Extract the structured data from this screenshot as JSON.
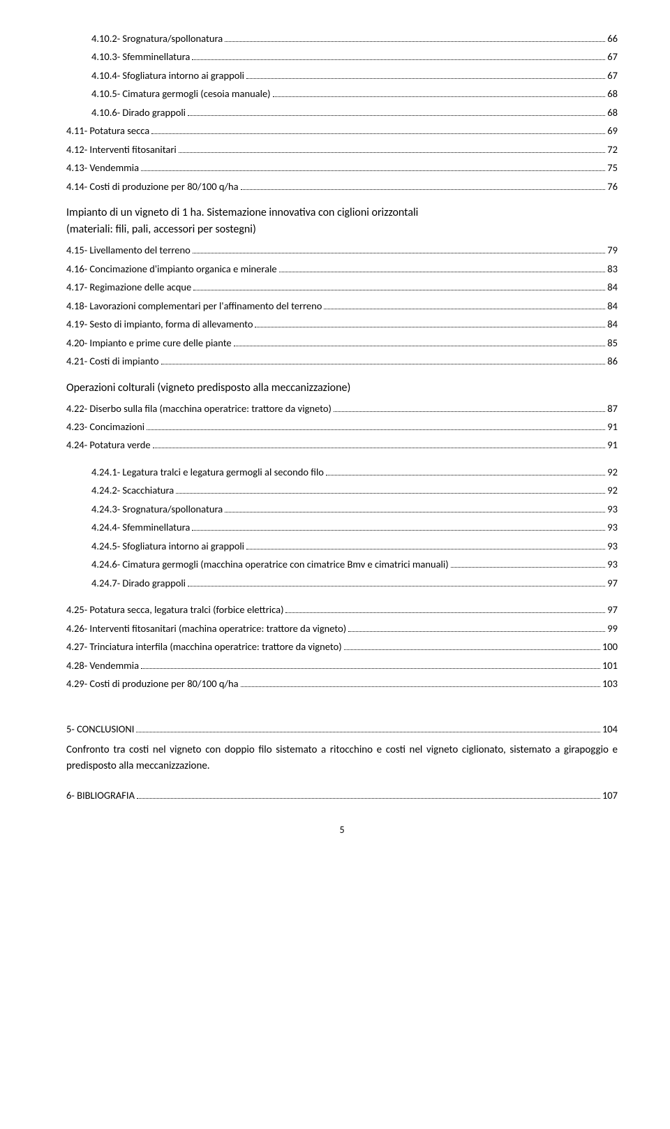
{
  "toc_block1": [
    {
      "indent": 2,
      "label": "4.10.2- Srognatura/spollonatura",
      "page": "66"
    },
    {
      "indent": 2,
      "label": "4.10.3- Sfemminellatura",
      "page": "67"
    },
    {
      "indent": 2,
      "label": "4.10.4- Sfogliatura intorno ai grappoli",
      "page": "67"
    },
    {
      "indent": 2,
      "label": "4.10.5- Cimatura germogli (cesoia manuale)",
      "page": "68"
    },
    {
      "indent": 2,
      "label": "4.10.6- Dirado grappoli",
      "page": "68"
    }
  ],
  "toc_block2": [
    {
      "indent": 1,
      "label": "4.11- Potatura secca",
      "page": "69"
    },
    {
      "indent": 1,
      "label": "4.12- Interventi fitosanitari",
      "page": "72"
    },
    {
      "indent": 1,
      "label": "4.13- Vendemmia",
      "page": "75"
    },
    {
      "indent": 1,
      "label": "4.14- Costi di produzione per 80/100 q/ha",
      "page": "76"
    }
  ],
  "heading1_line1": "Impianto di un vigneto di 1 ha. Sistemazione innovativa con ciglioni orizzontali",
  "heading1_line2": "(materiali: fili, pali, accessori per sostegni)",
  "toc_block3": [
    {
      "indent": 1,
      "label": "4.15- Livellamento del terreno",
      "page": "79"
    },
    {
      "indent": 1,
      "label": "4.16- Concimazione d'impianto organica e minerale",
      "page": "83"
    },
    {
      "indent": 1,
      "label": "4.17- Regimazione delle acque",
      "page": "84"
    },
    {
      "indent": 1,
      "label": "4.18- Lavorazioni complementari per l'affinamento del terreno",
      "page": "84"
    },
    {
      "indent": 1,
      "label": "4.19- Sesto di impianto, forma di allevamento",
      "page": "84"
    },
    {
      "indent": 1,
      "label": "4.20- Impianto e prime cure delle piante",
      "page": "85"
    },
    {
      "indent": 1,
      "label": "4.21- Costi di impianto",
      "page": "86"
    }
  ],
  "heading2": "Operazioni colturali (vigneto predisposto alla meccanizzazione)",
  "toc_block4": [
    {
      "indent": 1,
      "label": "4.22- Diserbo sulla fila (macchina operatrice: trattore da vigneto)",
      "page": "87"
    },
    {
      "indent": 1,
      "label": "4.23- Concimazioni",
      "page": "91"
    },
    {
      "indent": 1,
      "label": "4.24- Potatura verde",
      "page": "91"
    }
  ],
  "toc_block5": [
    {
      "indent": 2,
      "label": "4.24.1- Legatura tralci e legatura germogli al secondo filo",
      "page": "92"
    },
    {
      "indent": 2,
      "label": "4.24.2- Scacchiatura",
      "page": "92"
    },
    {
      "indent": 2,
      "label": "4.24.3- Srognatura/spollonatura",
      "page": "93"
    },
    {
      "indent": 2,
      "label": "4.24.4- Sfemminellatura",
      "page": "93"
    },
    {
      "indent": 2,
      "label": "4.24.5- Sfogliatura intorno ai grappoli",
      "page": "93"
    },
    {
      "indent": 2,
      "label": "4.24.6- Cimatura germogli (macchina operatrice con cimatrice Bmv e cimatrici manuali)",
      "page": "93"
    },
    {
      "indent": 2,
      "label": "4.24.7- Dirado grappoli",
      "page": "97"
    }
  ],
  "toc_block6": [
    {
      "indent": 1,
      "label": "4.25- Potatura secca, legatura tralci (forbice elettrica)",
      "page": "97"
    },
    {
      "indent": 1,
      "label": "4.26- Interventi fitosanitari (machina operatrice: trattore da vigneto)",
      "page": "99"
    },
    {
      "indent": 1,
      "label": "4.27- Trinciatura interfila (macchina operatrice: trattore da vigneto)",
      "page": "100"
    },
    {
      "indent": 1,
      "label": "4.28- Vendemmia",
      "page": "101"
    },
    {
      "indent": 1,
      "label": "4.29- Costi di produzione per 80/100 q/ha",
      "page": "103"
    }
  ],
  "toc_block7": [
    {
      "indent": 1,
      "label": "5- CONCLUSIONI",
      "page": "104"
    }
  ],
  "conclusion_para": "Confronto tra costi nel vigneto con doppio filo sistemato a ritocchino e costi nel vigneto ciglionato, sistemato a girapoggio e predisposto alla meccanizzazione.",
  "toc_block8": [
    {
      "indent": 1,
      "label": "6- BIBLIOGRAFIA",
      "page": "107"
    }
  ],
  "page_number": "5"
}
